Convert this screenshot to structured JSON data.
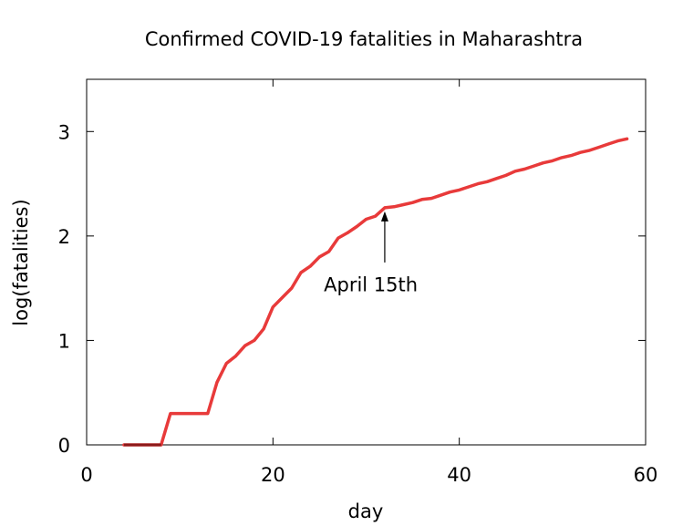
{
  "chart_data": {
    "type": "line",
    "title": "Confirmed COVID-19 fatalities in Maharashtra",
    "xlabel": "day",
    "ylabel": "log(fatalities)",
    "xlim": [
      0,
      60
    ],
    "ylim": [
      0,
      3.5
    ],
    "xticks": [
      0,
      20,
      40,
      60
    ],
    "xtick_labels": [
      "0",
      "20",
      "40",
      "60"
    ],
    "yticks": [
      0,
      1,
      2,
      3
    ],
    "ytick_labels": [
      "0",
      "1",
      "2",
      "3"
    ],
    "grid": false,
    "legend": "none",
    "series": [
      {
        "color": "#e83a3a",
        "x": [
          4,
          8,
          9,
          10,
          11,
          12,
          13,
          14,
          15,
          16,
          17,
          18,
          19,
          20,
          21,
          22,
          23,
          24,
          25,
          26,
          27,
          28,
          29,
          30,
          31,
          32,
          33,
          34,
          35,
          36,
          37,
          38,
          39,
          40,
          41,
          42,
          43,
          44,
          45,
          46,
          47,
          48,
          49,
          50,
          51,
          52,
          53,
          54,
          55,
          56,
          57,
          58
        ],
        "y": [
          0,
          0,
          0.3,
          0.3,
          0.3,
          0.3,
          0.3,
          0.6,
          0.78,
          0.85,
          0.95,
          1.0,
          1.11,
          1.32,
          1.41,
          1.5,
          1.65,
          1.71,
          1.8,
          1.85,
          1.98,
          2.03,
          2.09,
          2.16,
          2.19,
          2.27,
          2.28,
          2.3,
          2.32,
          2.35,
          2.36,
          2.39,
          2.42,
          2.44,
          2.47,
          2.5,
          2.52,
          2.55,
          2.58,
          2.62,
          2.64,
          2.67,
          2.7,
          2.72,
          2.75,
          2.77,
          2.8,
          2.82,
          2.85,
          2.88,
          2.91,
          2.93
        ]
      }
    ],
    "annotations": [
      {
        "text": "April 15th",
        "arrow_to": {
          "x": 32,
          "y": 2.27
        },
        "label_at": {
          "x": 30.5,
          "y": 1.47
        }
      }
    ]
  }
}
